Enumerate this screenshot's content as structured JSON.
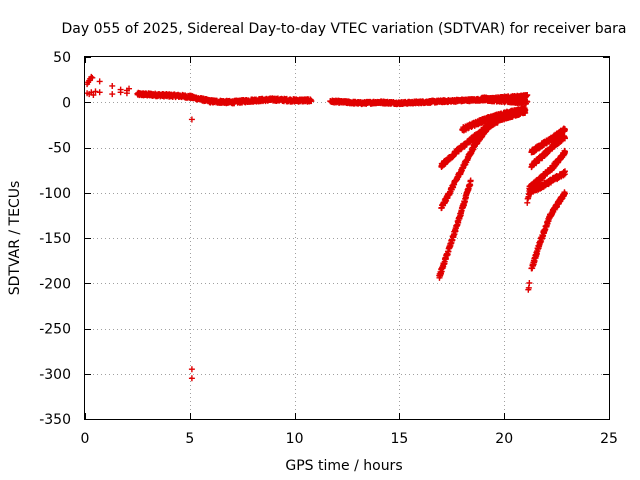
{
  "chart_data": {
    "type": "scatter",
    "title": "Day 055 of 2025, Sidereal Day-to-day VTEC variation (SDTVAR) for receiver bara",
    "xlabel": "GPS time / hours",
    "ylabel": "SDTVAR / TECUs",
    "xlim": [
      0,
      25
    ],
    "ylim": [
      -350,
      50
    ],
    "xticks": [
      0,
      5,
      10,
      15,
      20,
      25
    ],
    "yticks": [
      50,
      0,
      -50,
      -100,
      -150,
      -200,
      -250,
      -300,
      -350
    ],
    "grid": true,
    "marker": "plus",
    "color": "#e00000",
    "series": [
      {
        "name": "isolated points",
        "kind": "points",
        "points": [
          [
            0.1,
            20
          ],
          [
            0.15,
            22
          ],
          [
            0.2,
            24
          ],
          [
            0.25,
            26
          ],
          [
            0.3,
            28
          ],
          [
            0.35,
            27
          ],
          [
            0.1,
            10
          ],
          [
            0.2,
            9
          ],
          [
            0.3,
            11
          ],
          [
            0.4,
            8
          ],
          [
            0.5,
            12
          ],
          [
            0.7,
            23
          ],
          [
            0.7,
            11
          ],
          [
            1.3,
            18
          ],
          [
            1.3,
            9
          ],
          [
            1.7,
            14
          ],
          [
            1.7,
            11
          ],
          [
            2.0,
            13
          ],
          [
            2.0,
            10
          ],
          [
            2.1,
            15
          ],
          [
            5.1,
            -19
          ],
          [
            5.1,
            -295
          ],
          [
            5.1,
            -305
          ]
        ]
      },
      {
        "name": "near-zero band",
        "kind": "dense",
        "density": 0.015,
        "jitter": 1.5,
        "points": [
          [
            2.5,
            9
          ],
          [
            3.5,
            8
          ],
          [
            4.5,
            7
          ],
          [
            5.0,
            6
          ],
          [
            5.6,
            3
          ],
          [
            6.0,
            1
          ],
          [
            7.0,
            0
          ],
          [
            8.0,
            2
          ],
          [
            9.0,
            3
          ],
          [
            10.0,
            2
          ],
          [
            10.8,
            2
          ]
        ]
      },
      {
        "name": "near-zero band 2",
        "kind": "dense",
        "density": 0.015,
        "jitter": 1.2,
        "points": [
          [
            11.7,
            1
          ],
          [
            12.5,
            0
          ],
          [
            13.2,
            -1
          ],
          [
            14.0,
            0
          ],
          [
            15.0,
            -1
          ],
          [
            16.0,
            0
          ],
          [
            17.0,
            1
          ],
          [
            18.0,
            2
          ],
          [
            19.0,
            3
          ],
          [
            20.0,
            5
          ],
          [
            21.1,
            7
          ]
        ]
      },
      {
        "name": "upper band 19-21",
        "kind": "dense",
        "density": 0.012,
        "jitter": 2,
        "points": [
          [
            18.9,
            4
          ],
          [
            20.0,
            2
          ],
          [
            21.1,
            0
          ]
        ]
      },
      {
        "name": "track A",
        "kind": "dense",
        "density": 0.012,
        "jitter": 2,
        "points": [
          [
            17.0,
            -117
          ],
          [
            17.8,
            -82
          ],
          [
            18.6,
            -47
          ],
          [
            19.2,
            -28
          ],
          [
            20.0,
            -14
          ],
          [
            21.0,
            -9
          ]
        ]
      },
      {
        "name": "track B",
        "kind": "dense",
        "density": 0.012,
        "jitter": 2,
        "points": [
          [
            17.0,
            -70
          ],
          [
            17.8,
            -53
          ],
          [
            18.6,
            -38
          ],
          [
            19.3,
            -25
          ],
          [
            20.0,
            -17
          ],
          [
            21.0,
            -10
          ]
        ]
      },
      {
        "name": "track C",
        "kind": "dense",
        "density": 0.012,
        "jitter": 2,
        "points": [
          [
            18.0,
            -30
          ],
          [
            19.0,
            -20
          ],
          [
            20.0,
            -13
          ],
          [
            21.0,
            -8
          ]
        ]
      },
      {
        "name": "track D",
        "kind": "dense",
        "density": 0.012,
        "jitter": 2,
        "points": [
          [
            16.9,
            -193
          ],
          [
            17.4,
            -160
          ],
          [
            17.9,
            -125
          ],
          [
            18.4,
            -88
          ]
        ]
      },
      {
        "name": "track E",
        "kind": "dense",
        "density": 0.012,
        "jitter": 2,
        "points": [
          [
            21.3,
            -55
          ],
          [
            21.8,
            -47
          ],
          [
            22.3,
            -40
          ],
          [
            22.9,
            -30
          ]
        ]
      },
      {
        "name": "track F",
        "kind": "dense",
        "density": 0.012,
        "jitter": 2,
        "points": [
          [
            21.3,
            -70
          ],
          [
            21.8,
            -60
          ],
          [
            22.4,
            -47
          ],
          [
            22.9,
            -38
          ]
        ]
      },
      {
        "name": "track G",
        "kind": "dense",
        "density": 0.012,
        "jitter": 2,
        "points": [
          [
            21.2,
            -95
          ],
          [
            21.7,
            -85
          ],
          [
            22.3,
            -72
          ],
          [
            22.9,
            -55
          ]
        ]
      },
      {
        "name": "track H",
        "kind": "dense",
        "density": 0.012,
        "jitter": 2,
        "points": [
          [
            21.2,
            -100
          ],
          [
            21.7,
            -94
          ],
          [
            22.3,
            -86
          ],
          [
            22.9,
            -78
          ]
        ]
      },
      {
        "name": "track I",
        "kind": "dense",
        "density": 0.012,
        "jitter": 2,
        "points": [
          [
            21.3,
            -185
          ],
          [
            21.7,
            -155
          ],
          [
            22.2,
            -125
          ],
          [
            22.9,
            -100
          ]
        ]
      },
      {
        "name": "track J",
        "kind": "dense",
        "density": 0.03,
        "jitter": 1.5,
        "points": [
          [
            21.15,
            -208
          ],
          [
            21.2,
            -200
          ]
        ]
      },
      {
        "name": "track K",
        "kind": "dense",
        "density": 0.02,
        "jitter": 1.5,
        "points": [
          [
            21.1,
            -110
          ],
          [
            21.2,
            -100
          ]
        ]
      }
    ]
  }
}
